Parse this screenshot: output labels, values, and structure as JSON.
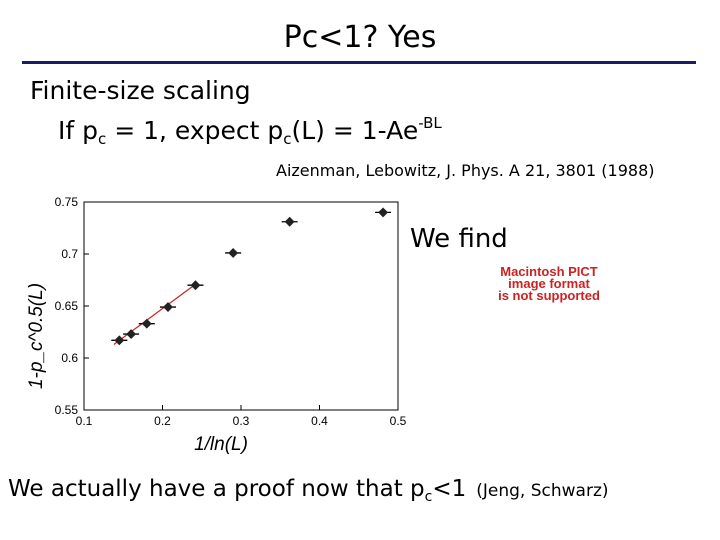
{
  "title": "Pc<1?  Yes",
  "heading": "Finite-size scaling",
  "formula": {
    "prefix": "If p",
    "sub1": "c",
    "mid": " = 1, expect p",
    "sub2": "c",
    "rest": "(L) = 1-Ae",
    "sup": "-BL"
  },
  "citation": "Aizenman, Lebowitz, J. Phys. A 21, 3801 (1988)",
  "we_find": "We find",
  "pict_placeholder": [
    "Macintosh PICT",
    "image format",
    "is not supported"
  ],
  "bottom": {
    "text": "We actually have a proof now that p",
    "sub": "c",
    "after": "<1",
    "attribution": "(Jeng, Schwarz)"
  },
  "colors": {
    "rule": "#1a1a66",
    "fit": "#cc2222",
    "pict": "#cc2222"
  },
  "chart_data": {
    "type": "scatter",
    "xlabel": "1/ln(L)",
    "ylabel": "1-p_c^0.5(L)",
    "xlim": [
      0.1,
      0.5
    ],
    "ylim": [
      0.55,
      0.75
    ],
    "xticks": [
      "0.1",
      "0.2",
      "0.3",
      "0.4",
      "0.5"
    ],
    "yticks": [
      "0.55",
      "0.6",
      "0.65",
      "0.7",
      "0.75"
    ],
    "points": [
      {
        "x": 0.145,
        "y": 0.617
      },
      {
        "x": 0.16,
        "y": 0.623
      },
      {
        "x": 0.18,
        "y": 0.633
      },
      {
        "x": 0.207,
        "y": 0.649
      },
      {
        "x": 0.242,
        "y": 0.67
      },
      {
        "x": 0.29,
        "y": 0.701
      },
      {
        "x": 0.362,
        "y": 0.731
      },
      {
        "x": 0.481,
        "y": 0.74
      }
    ],
    "fit": {
      "x": [
        0.138,
        0.244
      ],
      "y": [
        0.613,
        0.672
      ]
    },
    "grid": false
  }
}
